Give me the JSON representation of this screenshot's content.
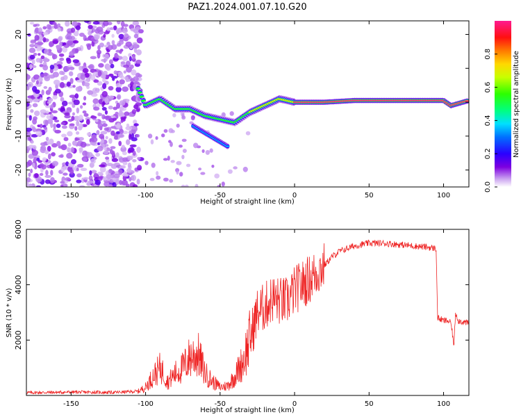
{
  "figure_title": "PAZ1.2024.001.07.10.G20",
  "chart_data": [
    {
      "type": "heatmap",
      "title": "",
      "xlabel": "Height of straight line (km)",
      "ylabel": "Frequency (Hz)",
      "xlim": [
        -180,
        117
      ],
      "ylim": [
        -25,
        24
      ],
      "xticks": [
        -150,
        -100,
        -50,
        0,
        50,
        100
      ],
      "yticks": [
        -20,
        -10,
        0,
        10,
        20
      ],
      "colorbar": {
        "label": "Normalized spectral amplitude",
        "range": [
          0,
          1
        ],
        "ticks": [
          "0.0",
          "0.2",
          "0.4",
          "0.6",
          "0.8"
        ],
        "colormap": "gist_ncar-like (white→purple→blue→cyan→green→yellow→orange→red→pink)"
      },
      "ridge": {
        "description": "main frequency ridge",
        "points": [
          {
            "x": -180,
            "y": 3
          },
          {
            "x": -105,
            "y": 4
          },
          {
            "x": -100,
            "y": -1
          },
          {
            "x": -90,
            "y": 1
          },
          {
            "x": -80,
            "y": -2
          },
          {
            "x": -70,
            "y": -2
          },
          {
            "x": -60,
            "y": -4
          },
          {
            "x": -50,
            "y": -5
          },
          {
            "x": -40,
            "y": -6
          },
          {
            "x": -30,
            "y": -3
          },
          {
            "x": -20,
            "y": -1
          },
          {
            "x": -10,
            "y": 1
          },
          {
            "x": 0,
            "y": 0
          },
          {
            "x": 20,
            "y": 0
          },
          {
            "x": 40,
            "y": 0.5
          },
          {
            "x": 60,
            "y": 0.5
          },
          {
            "x": 80,
            "y": 0.5
          },
          {
            "x": 100,
            "y": 0.5
          },
          {
            "x": 105,
            "y": -1
          },
          {
            "x": 117,
            "y": 0.5
          }
        ]
      }
    },
    {
      "type": "line",
      "title": "",
      "xlabel": "Height of straight line (km)",
      "ylabel": "SNR (10 * v/v)",
      "xlim": [
        -180,
        117
      ],
      "ylim": [
        0,
        6000
      ],
      "xticks": [
        -150,
        -100,
        -50,
        0,
        50,
        100
      ],
      "yticks": [
        2000,
        4000,
        6000
      ],
      "color": "#ee2222",
      "series": [
        {
          "values_xy": [
            [
              -180,
              100
            ],
            [
              -150,
              120
            ],
            [
              -120,
              110
            ],
            [
              -105,
              150
            ],
            [
              -100,
              300
            ],
            [
              -95,
              700
            ],
            [
              -90,
              1000
            ],
            [
              -85,
              500
            ],
            [
              -80,
              800
            ],
            [
              -75,
              1000
            ],
            [
              -70,
              1400
            ],
            [
              -65,
              1500
            ],
            [
              -60,
              800
            ],
            [
              -55,
              500
            ],
            [
              -50,
              300
            ],
            [
              -45,
              350
            ],
            [
              -40,
              700
            ],
            [
              -35,
              1200
            ],
            [
              -30,
              2000
            ],
            [
              -25,
              3000
            ],
            [
              -20,
              3200
            ],
            [
              -15,
              3500
            ],
            [
              -10,
              3400
            ],
            [
              -5,
              3400
            ],
            [
              0,
              3800
            ],
            [
              10,
              4200
            ],
            [
              20,
              4700
            ],
            [
              25,
              5000
            ],
            [
              30,
              5200
            ],
            [
              40,
              5400
            ],
            [
              50,
              5500
            ],
            [
              60,
              5500
            ],
            [
              70,
              5450
            ],
            [
              80,
              5400
            ],
            [
              90,
              5350
            ],
            [
              95,
              5300
            ],
            [
              96,
              2800
            ],
            [
              100,
              2700
            ],
            [
              103,
              2700
            ],
            [
              105,
              2600
            ],
            [
              107,
              1800
            ],
            [
              108,
              3000
            ],
            [
              110,
              2700
            ],
            [
              117,
              2600
            ]
          ]
        }
      ]
    }
  ]
}
